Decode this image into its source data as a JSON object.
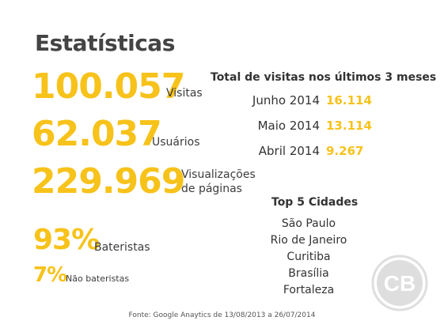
{
  "title": "Estatísticas",
  "stats": [
    {
      "value": "100.057",
      "label": "Visitas"
    },
    {
      "value": "62.037",
      "label": "Usuários"
    },
    {
      "value": "229.969",
      "label": "Visualizações de páginas"
    }
  ],
  "share": [
    {
      "value": "93%",
      "label": "Bateristas"
    },
    {
      "value": "7%",
      "label": "Não bateristas"
    }
  ],
  "visits": {
    "title": "Total de visitas nos últimos 3 meses",
    "rows": [
      {
        "month": "Junho 2014",
        "value": "16.114"
      },
      {
        "month": "Maio 2014",
        "value": "13.114"
      },
      {
        "month": "Abril 2014",
        "value": "9.267"
      }
    ]
  },
  "cities": {
    "title": "Top 5 Cidades",
    "items": [
      "São Paulo",
      "Rio de Janeiro",
      "Curitiba",
      "Brasília",
      "Fortaleza"
    ]
  },
  "source": "Fonte: Google Anaytics de 13/08/2013 a 26/07/2014",
  "logo": {
    "text": "CB",
    "icon": "cb-logo-icon"
  },
  "colors": {
    "accent": "#f7c21a",
    "text": "#3c3c3c",
    "logo": "#dedede"
  }
}
